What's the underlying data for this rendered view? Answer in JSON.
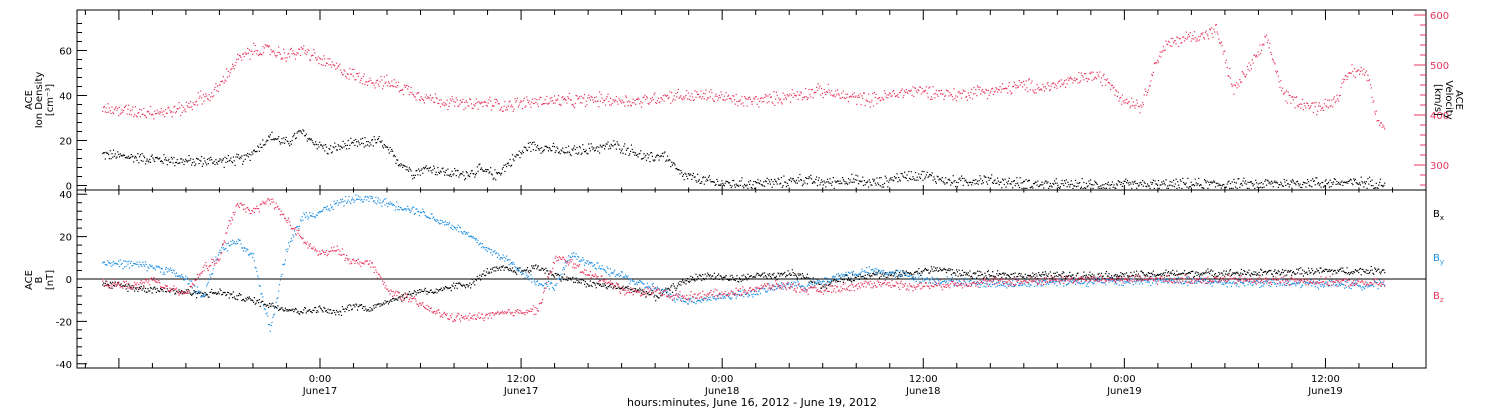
{
  "chart_data": [
    {
      "type": "scatter",
      "panel": "top",
      "ylabel_left": [
        "ACE",
        "Ion Density",
        "[cm⁻³]"
      ],
      "ylabel_right": [
        "ACE",
        "Velocity",
        "[km/s]"
      ],
      "ylim_left": [
        -2,
        78
      ],
      "ylim_right": [
        250,
        610
      ],
      "yticks_left": [
        "0",
        "20",
        "40",
        "60"
      ],
      "yticks_right": [
        "300",
        "400",
        "500",
        "600"
      ],
      "grid": false,
      "series": [
        {
          "axis": "left",
          "color": "#000000",
          "x": [
            -13,
            -10,
            -8,
            -6,
            -4.5,
            -3,
            -2,
            -1.2,
            -0.5,
            0,
            0.5,
            1.5,
            2.5,
            3.5,
            4.5,
            5.5,
            6.5,
            7.5,
            8.5,
            9.5,
            10.5,
            11.5,
            12.5,
            13.5,
            14.5,
            15.5,
            16.5,
            17.5,
            18.5,
            19.5,
            20.5,
            21.5,
            22.5,
            23.5,
            24.5,
            25.5,
            26.5,
            27.5,
            28.5,
            29.5,
            30.5,
            31.5,
            32.5,
            33.5,
            34.5,
            35.5,
            36.5,
            37.5,
            38.5,
            39.5,
            41,
            42.5,
            44,
            46,
            48,
            50,
            52,
            54,
            56,
            58,
            60,
            62,
            63.5
          ],
          "y": [
            14,
            12,
            11,
            11,
            12,
            22,
            19,
            24,
            20,
            18,
            16,
            18,
            19,
            20,
            12,
            6,
            8,
            6,
            5,
            7,
            5,
            12,
            18,
            17,
            15,
            16,
            17,
            18,
            16,
            12,
            14,
            5,
            3,
            1.5,
            1,
            1,
            1.5,
            1.5,
            3,
            2,
            1.5,
            3,
            1.5,
            1.5,
            4,
            5,
            4,
            2,
            2,
            3,
            1.5,
            1,
            0.5,
            0.5,
            0.5,
            0.5,
            0.8,
            0.8,
            0.8,
            1.5,
            1.5,
            1.5,
            1.5
          ]
        },
        {
          "axis": "right",
          "color": "#e8365d",
          "x": [
            -13,
            -10.5,
            -9,
            -8,
            -7.2,
            -6.5,
            -5.8,
            -5,
            -4,
            -3,
            -2,
            -1,
            0,
            1,
            2,
            3,
            4,
            5,
            6,
            7,
            8,
            9,
            10,
            11,
            12,
            13,
            14,
            15,
            16,
            17,
            18,
            19,
            20,
            21,
            22,
            23,
            24,
            25,
            26,
            27,
            28,
            29,
            30,
            31,
            32,
            33,
            34,
            35,
            36,
            37,
            38,
            39,
            40,
            40.5,
            41.5,
            42.2,
            43,
            44,
            45,
            46,
            47,
            48,
            49,
            50,
            50.5,
            51.5,
            52.5,
            53.5,
            54.5,
            55.5,
            56.5,
            57.5,
            58.5,
            59.5,
            60.5,
            61.5,
            62.5,
            63,
            63.5
          ],
          "y": [
            412,
            408,
            408,
            416,
            435,
            440,
            470,
            510,
            530,
            530,
            520,
            530,
            510,
            495,
            480,
            470,
            465,
            455,
            440,
            430,
            425,
            420,
            425,
            420,
            425,
            428,
            430,
            428,
            432,
            432,
            430,
            428,
            435,
            440,
            438,
            440,
            437,
            428,
            430,
            433,
            440,
            445,
            450,
            440,
            435,
            432,
            440,
            448,
            450,
            445,
            440,
            448,
            450,
            450,
            458,
            460,
            455,
            462,
            470,
            480,
            470,
            430,
            420,
            520,
            540,
            555,
            560,
            570,
            450,
            500,
            550,
            440,
            425,
            415,
            430,
            490,
            485,
            400,
            380
          ]
        }
      ]
    },
    {
      "type": "scatter",
      "panel": "bottom",
      "ylabel": [
        "ACE",
        "B",
        "[nT]"
      ],
      "ylim": [
        -42,
        42
      ],
      "yticks": [
        "-40",
        "-20",
        "0",
        "20",
        "40"
      ],
      "zero_line": true,
      "grid": false,
      "xlabel": "hours:minutes, June 16, 2012 - June 19, 2012",
      "xlim": [
        -14.5,
        66
      ],
      "xticks": [
        {
          "x": 0,
          "time": "0:00",
          "date": "June17"
        },
        {
          "x": 12,
          "time": "12:00",
          "date": "June17"
        },
        {
          "x": 24,
          "time": "0:00",
          "date": "June18"
        },
        {
          "x": 36,
          "time": "12:00",
          "date": "June18"
        },
        {
          "x": 48,
          "time": "0:00",
          "date": "June19"
        },
        {
          "x": 60,
          "time": "12:00",
          "date": "June19"
        }
      ],
      "series": [
        {
          "name": "B",
          "sub": "x",
          "color": "#000000",
          "x": [
            -13,
            -11,
            -9,
            -7,
            -6,
            -5,
            -4,
            -3,
            -2,
            -1,
            0,
            1,
            2,
            3,
            4,
            5,
            6,
            7,
            8,
            9,
            10,
            11,
            12,
            13,
            14,
            15,
            16,
            17,
            18,
            19,
            20,
            21,
            22,
            23,
            24,
            25,
            26,
            27,
            28,
            29,
            30,
            31,
            32,
            33,
            34,
            35,
            36,
            37,
            38,
            40,
            42,
            44,
            46,
            48,
            50,
            52,
            54,
            56,
            58,
            60,
            62,
            63.5
          ],
          "y": [
            -2,
            -4,
            -5,
            -7,
            -6,
            -8,
            -10,
            -12,
            -14,
            -15,
            -14,
            -16,
            -12,
            -14,
            -10,
            -8,
            -5,
            -6,
            -3,
            -2,
            4,
            5,
            4,
            6,
            2,
            0,
            -2,
            -3,
            -4,
            -5,
            -8,
            -4,
            0,
            2,
            1,
            0,
            2,
            1,
            3,
            1,
            -3,
            0,
            1,
            3,
            2,
            3,
            4,
            5,
            3,
            2,
            2,
            2,
            2,
            2,
            2.5,
            3,
            3,
            3,
            3.5,
            4,
            4,
            4.5
          ]
        },
        {
          "name": "B",
          "sub": "y",
          "color": "#1b8fe5",
          "x": [
            -13,
            -11,
            -10,
            -9,
            -8,
            -7,
            -6,
            -5,
            -4,
            -3,
            -2,
            -1,
            0,
            1,
            2,
            3,
            4,
            5,
            6,
            7,
            8,
            9,
            10,
            11,
            12,
            13,
            14,
            15,
            16,
            17,
            18,
            19,
            20,
            21,
            22,
            23,
            24,
            25,
            26,
            27,
            28,
            29,
            30,
            31,
            32,
            33,
            34,
            35,
            36,
            38,
            40,
            42,
            44,
            46,
            48,
            50,
            52,
            54,
            56,
            58,
            60,
            62,
            63.5
          ],
          "y": [
            8,
            7,
            6,
            4,
            0,
            -8,
            14,
            18,
            10,
            -24,
            15,
            30,
            32,
            36,
            38,
            38,
            36,
            34,
            32,
            28,
            25,
            20,
            14,
            10,
            4,
            -2,
            -3,
            12,
            8,
            4,
            2,
            -2,
            -4,
            -8,
            -10,
            -9,
            -8,
            -7,
            -6,
            -4,
            -2,
            -3,
            -1,
            2,
            3,
            4,
            3,
            2,
            0,
            -1,
            -2,
            -2,
            -1,
            -1,
            -1,
            -0.5,
            -1,
            -1.5,
            -1.5,
            -2,
            -2,
            -2.5,
            -2.5
          ]
        },
        {
          "name": "B",
          "sub": "z",
          "color": "#e8365d",
          "x": [
            -13,
            -11,
            -10,
            -9,
            -8,
            -7,
            -6,
            -5.5,
            -5,
            -4,
            -3,
            -2,
            -1,
            0,
            1,
            2,
            3,
            4,
            5,
            6,
            7,
            8,
            9,
            10,
            11,
            12,
            13,
            14,
            15,
            16,
            17,
            18,
            19,
            20,
            21,
            22,
            23,
            24,
            25,
            26,
            27,
            28,
            29,
            30,
            31,
            32,
            33,
            34,
            35,
            36,
            38,
            40,
            42,
            44,
            46,
            48,
            50,
            52,
            54,
            56,
            58,
            60,
            62,
            63.5
          ],
          "y": [
            -2,
            -3,
            0,
            -5,
            -6,
            5,
            10,
            25,
            35,
            32,
            38,
            28,
            18,
            12,
            14,
            8,
            8,
            -5,
            -8,
            -12,
            -16,
            -18,
            -18,
            -17,
            -16,
            -15,
            -14,
            10,
            8,
            2,
            0,
            -5,
            -6,
            -5,
            -8,
            -8,
            -7,
            -7,
            -6,
            -4,
            -3,
            -3,
            -5,
            -5,
            -4,
            -3,
            -2,
            -2,
            -3,
            -3,
            -2,
            -1,
            -1,
            0,
            0,
            0,
            0,
            0,
            0,
            -0.5,
            -0.5,
            -1,
            -1.5,
            -2
          ]
        }
      ]
    }
  ]
}
